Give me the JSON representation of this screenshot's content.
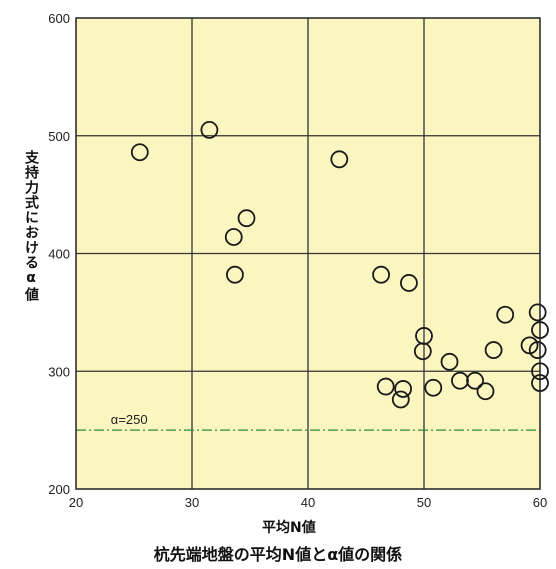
{
  "chart_data": {
    "type": "scatter",
    "title": "杭先端地盤の平均N値とα値の関係",
    "xlabel": "平均N値",
    "ylabel": "支持力式におけるα値",
    "xlim": [
      20,
      60
    ],
    "ylim": [
      200,
      600
    ],
    "xticks": [
      20,
      30,
      40,
      50,
      60
    ],
    "yticks": [
      200,
      300,
      400,
      500,
      600
    ],
    "grid": true,
    "background": "#fbf5c0",
    "reference_line": {
      "y": 250,
      "label": "α=250",
      "color": "#2e8b3a"
    },
    "points": [
      {
        "x": 25.5,
        "y": 486
      },
      {
        "x": 31.5,
        "y": 505
      },
      {
        "x": 42.7,
        "y": 480
      },
      {
        "x": 34.7,
        "y": 430
      },
      {
        "x": 33.6,
        "y": 414
      },
      {
        "x": 33.7,
        "y": 382
      },
      {
        "x": 46.3,
        "y": 382
      },
      {
        "x": 48.7,
        "y": 375
      },
      {
        "x": 50.0,
        "y": 330
      },
      {
        "x": 49.9,
        "y": 317
      },
      {
        "x": 57.0,
        "y": 348
      },
      {
        "x": 59.8,
        "y": 350
      },
      {
        "x": 60.0,
        "y": 335
      },
      {
        "x": 59.8,
        "y": 318
      },
      {
        "x": 59.1,
        "y": 322
      },
      {
        "x": 56.0,
        "y": 318
      },
      {
        "x": 52.2,
        "y": 308
      },
      {
        "x": 46.7,
        "y": 287
      },
      {
        "x": 48.2,
        "y": 285
      },
      {
        "x": 48.0,
        "y": 276
      },
      {
        "x": 50.8,
        "y": 286
      },
      {
        "x": 53.1,
        "y": 292
      },
      {
        "x": 54.4,
        "y": 292
      },
      {
        "x": 55.3,
        "y": 283
      },
      {
        "x": 60.0,
        "y": 300
      },
      {
        "x": 60.0,
        "y": 290
      }
    ]
  }
}
